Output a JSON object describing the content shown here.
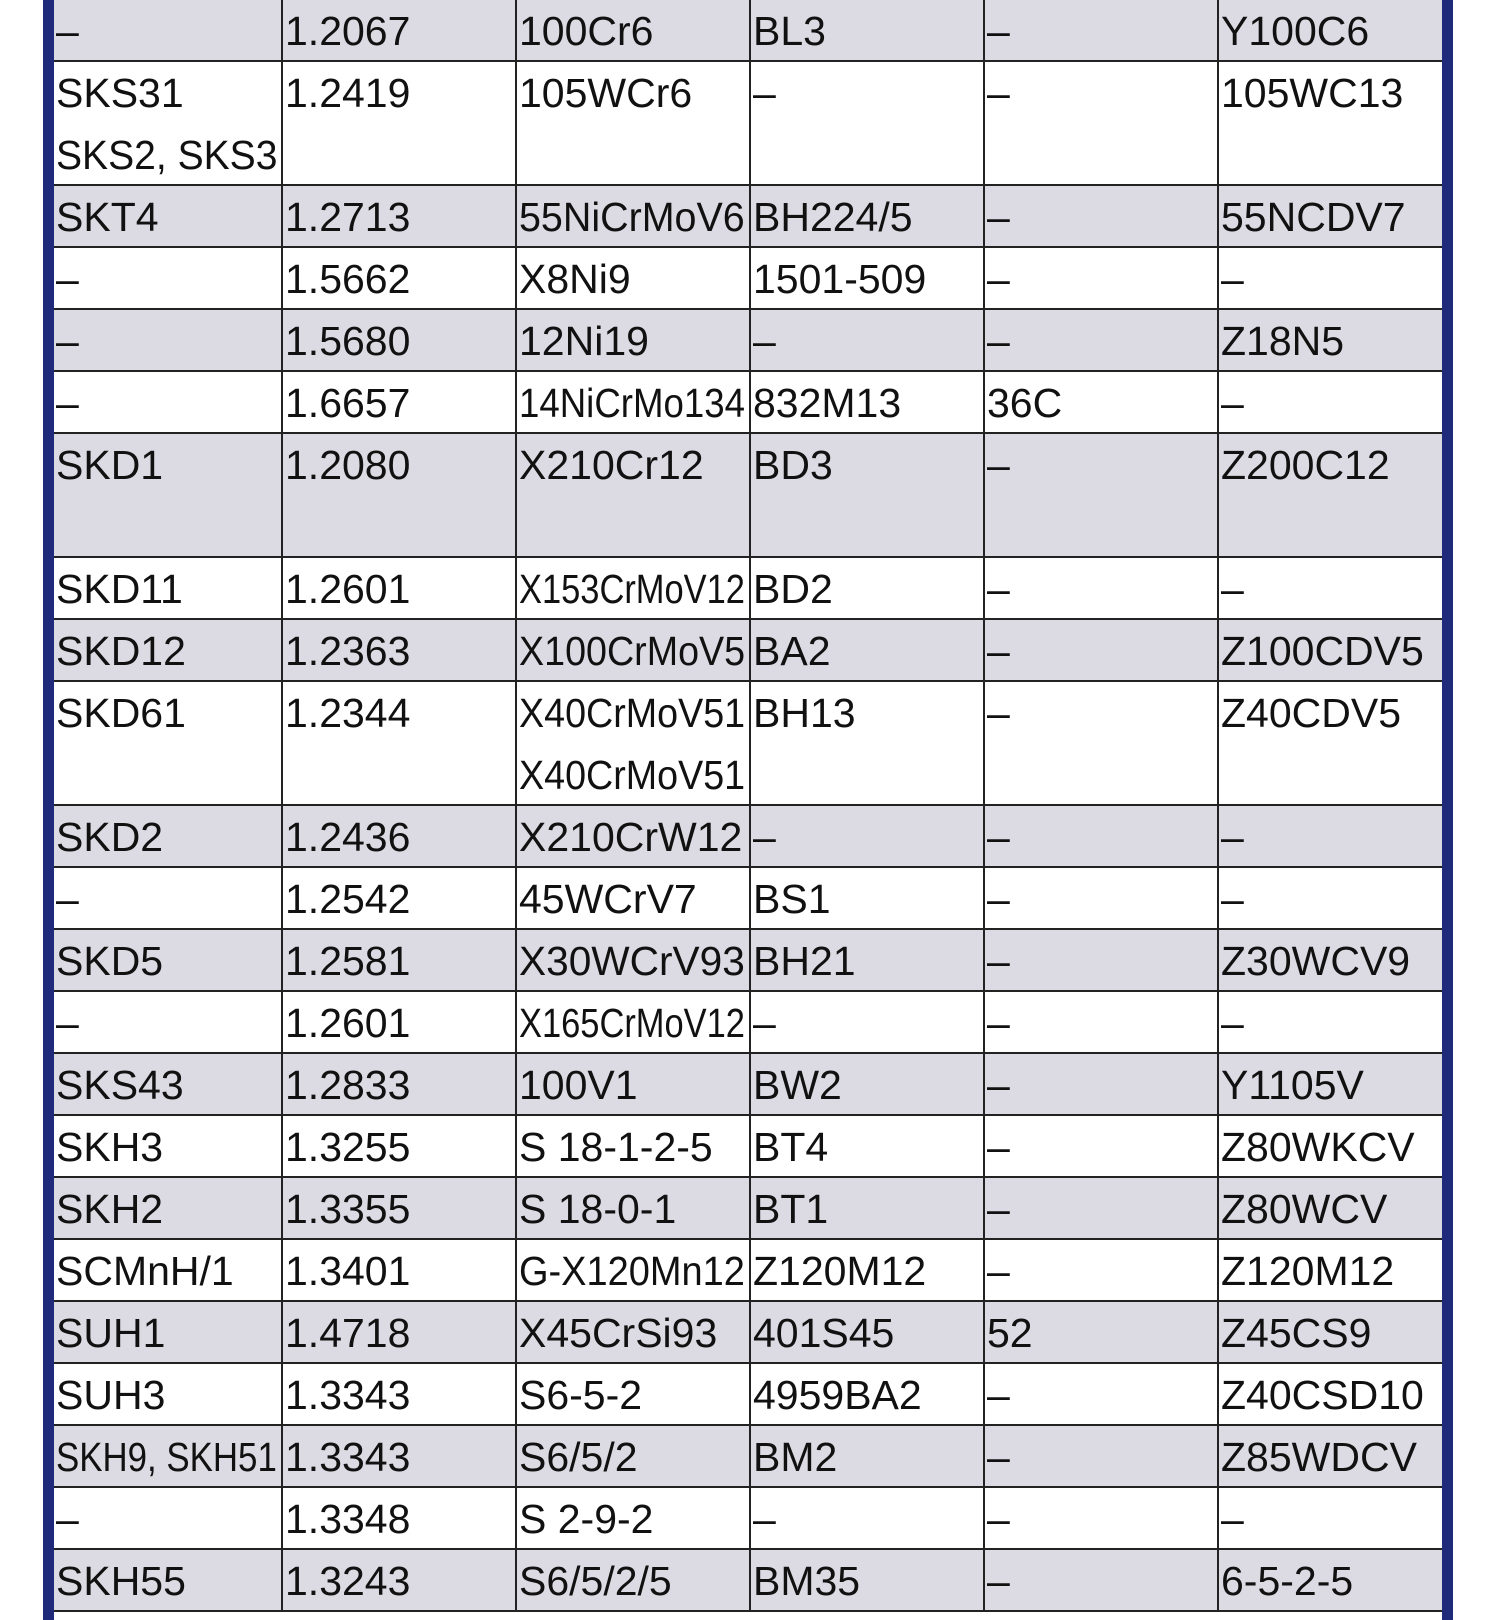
{
  "table": {
    "rows": [
      [
        "–",
        "1.2067",
        "100Cr6",
        "BL3",
        "–",
        "Y100C6"
      ],
      [
        [
          "SKS31",
          "SKS2, SKS3"
        ],
        "1.2419",
        "105WCr6",
        "–",
        "–",
        "105WC13"
      ],
      [
        "SKT4",
        "1.2713",
        "55NiCrMoV6",
        "BH224/5",
        "–",
        "55NCDV7"
      ],
      [
        "–",
        "1.5662",
        "X8Ni9",
        "1501-509",
        "–",
        "–"
      ],
      [
        "–",
        "1.5680",
        "12Ni19",
        "–",
        "–",
        "Z18N5"
      ],
      [
        "–",
        "1.6657",
        "14NiCrMo134",
        "832M13",
        "36C",
        "–"
      ],
      [
        [
          "SKD1",
          ""
        ],
        "1.2080",
        "X210Cr12",
        "BD3",
        "–",
        "Z200C12"
      ],
      [
        "SKD11",
        "1.2601",
        "X153CrMoV12",
        "BD2",
        "–",
        "–"
      ],
      [
        "SKD12",
        "1.2363",
        "X100CrMoV5",
        "BA2",
        "–",
        "Z100CDV5"
      ],
      [
        "SKD61",
        "1.2344",
        [
          "X40CrMoV51",
          "X40CrMoV51"
        ],
        "BH13",
        "–",
        "Z40CDV5"
      ],
      [
        "SKD2",
        "1.2436",
        "X210CrW12",
        "–",
        "–",
        "–"
      ],
      [
        "–",
        "1.2542",
        "45WCrV7",
        "BS1",
        "–",
        "–"
      ],
      [
        "SKD5",
        "1.2581",
        "X30WCrV93",
        "BH21",
        "–",
        "Z30WCV9"
      ],
      [
        "–",
        "1.2601",
        "X165CrMoV12",
        "–",
        "–",
        "–"
      ],
      [
        "SKS43",
        "1.2833",
        "100V1",
        "BW2",
        "–",
        "Y1105V"
      ],
      [
        "SKH3",
        "1.3255",
        "S 18-1-2-5",
        "BT4",
        "–",
        "Z80WKCV"
      ],
      [
        "SKH2",
        "1.3355",
        "S 18-0-1",
        "BT1",
        "–",
        "Z80WCV"
      ],
      [
        "SCMnH/1",
        "1.3401",
        "G-X120Mn12",
        "Z120M12",
        "–",
        "Z120M12"
      ],
      [
        "SUH1",
        "1.4718",
        "X45CrSi93",
        "401S45",
        "52",
        "Z45CS9"
      ],
      [
        "SUH3",
        "1.3343",
        "S6-5-2",
        "4959BA2",
        "–",
        "Z40CSD10"
      ],
      [
        "SKH9, SKH51",
        "1.3343",
        "S6/5/2",
        "BM2",
        "–",
        "Z85WDCV"
      ],
      [
        "–",
        "1.3348",
        "S 2-9-2",
        "–",
        "–",
        "–"
      ],
      [
        "SKH55",
        "1.3243",
        "S6/5/2/5",
        "BM35",
        "–",
        "6-5-2-5"
      ]
    ]
  }
}
